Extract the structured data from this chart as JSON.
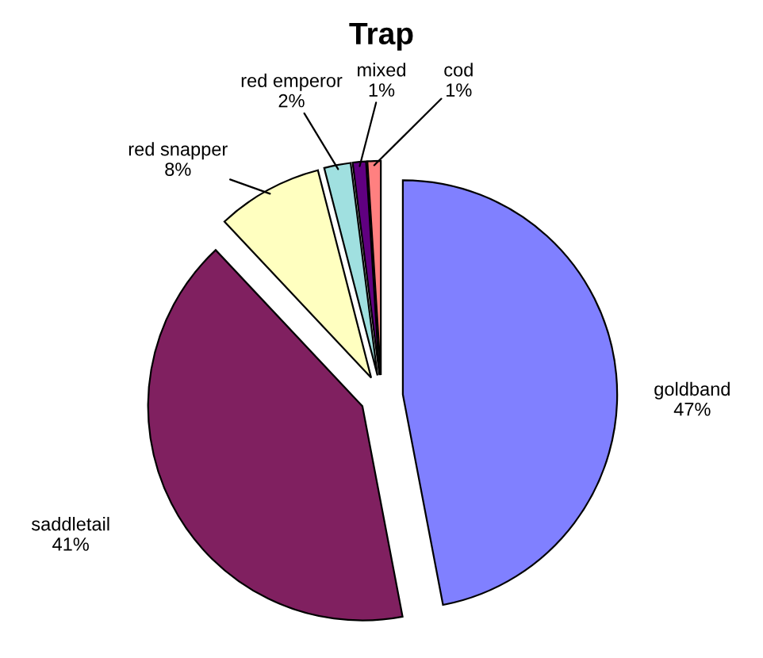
{
  "chart_data": {
    "type": "pie",
    "title": "Trap",
    "categories": [
      "goldband",
      "saddletail",
      "red snapper",
      "red emperor",
      "mixed",
      "cod"
    ],
    "values": [
      47,
      41,
      8,
      2,
      1,
      1
    ],
    "value_labels": [
      "47%",
      "41%",
      "8%",
      "2%",
      "1%",
      "1%"
    ],
    "colors": [
      "#8080ff",
      "#802060",
      "#ffffc0",
      "#a0e0e0",
      "#600080",
      "#ff8080"
    ],
    "legend": false
  }
}
